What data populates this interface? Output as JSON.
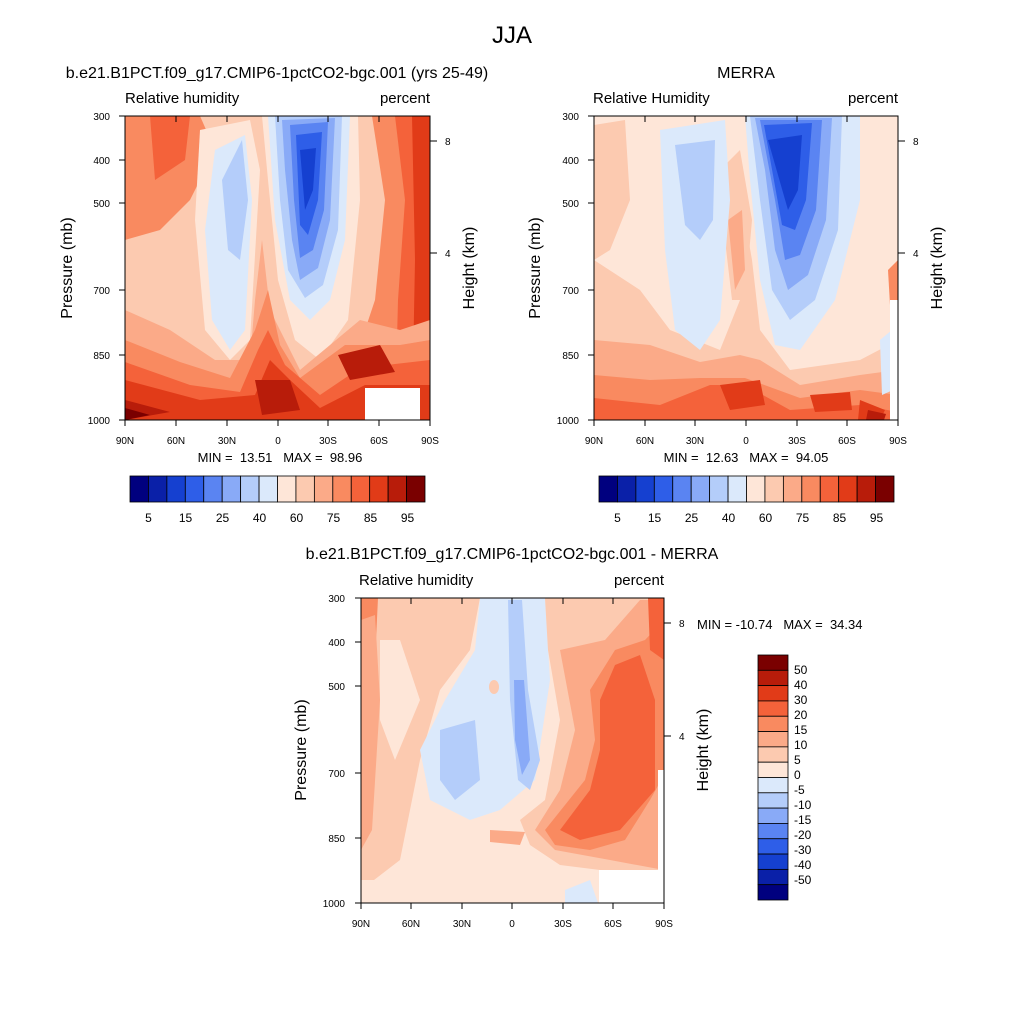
{
  "figure": {
    "title": "JJA"
  },
  "chart_data": [
    {
      "type": "heatmap",
      "title": "b.e21.B1PCT.f09_g17.CMIP6-1pctCO2-bgc.001 (yrs 25-49)",
      "left_label": "Relative humidity",
      "right_label": "percent",
      "xlabel": "",
      "ylabel": "Pressure (mb)",
      "ylabel_right": "Height (km)",
      "x_ticks": [
        "90N",
        "60N",
        "30N",
        "0",
        "30S",
        "60S",
        "90S"
      ],
      "y_ticks": [
        "300",
        "400",
        "500",
        "700",
        "850",
        "1000"
      ],
      "y_right_ticks": [
        "8",
        "4"
      ],
      "stats": "MIN =  13.51   MAX =  98.96",
      "colorbar_labels": [
        "5",
        "15",
        "25",
        "40",
        "60",
        "75",
        "85",
        "95"
      ]
    },
    {
      "type": "heatmap",
      "title": "MERRA",
      "left_label": "Relative Humidity",
      "right_label": "percent",
      "xlabel": "",
      "ylabel": "Pressure (mb)",
      "ylabel_right": "Height (km)",
      "x_ticks": [
        "90N",
        "60N",
        "30N",
        "0",
        "30S",
        "60S",
        "90S"
      ],
      "y_ticks": [
        "300",
        "400",
        "500",
        "700",
        "850",
        "1000"
      ],
      "y_right_ticks": [
        "8",
        "4"
      ],
      "stats": "MIN =  12.63   MAX =  94.05",
      "colorbar_labels": [
        "5",
        "15",
        "25",
        "40",
        "60",
        "75",
        "85",
        "95"
      ]
    },
    {
      "type": "heatmap",
      "title": "b.e21.B1PCT.f09_g17.CMIP6-1pctCO2-bgc.001 - MERRA",
      "left_label": "Relative humidity",
      "right_label": "percent",
      "xlabel": "",
      "ylabel": "Pressure (mb)",
      "ylabel_right": "Height (km)",
      "x_ticks": [
        "90N",
        "60N",
        "30N",
        "0",
        "30S",
        "60S",
        "90S"
      ],
      "y_ticks": [
        "300",
        "400",
        "500",
        "700",
        "850",
        "1000"
      ],
      "y_right_ticks": [
        "8",
        "4"
      ],
      "stats": "MIN = -10.74   MAX =  34.34",
      "colorbar_labels": [
        "50",
        "40",
        "30",
        "20",
        "15",
        "10",
        "5",
        "0",
        "-5",
        "-10",
        "-15",
        "-20",
        "-30",
        "-40",
        "-50"
      ]
    }
  ],
  "colors": {
    "abs_scale": [
      "#00007f",
      "#0a20a8",
      "#1540d0",
      "#2e5ee8",
      "#5a84f2",
      "#89aaf7",
      "#b4cdfa",
      "#dbe9fb",
      "#fee6d8",
      "#fccab0",
      "#fbaa88",
      "#f98a60",
      "#f4623a",
      "#e13b18",
      "#b81c0a",
      "#7a0000"
    ],
    "diff_scale": [
      "#7a0000",
      "#b81c0a",
      "#e13b18",
      "#f4623a",
      "#f98a60",
      "#fbaa88",
      "#fccab0",
      "#fee6d8",
      "#dbe9fb",
      "#b4cdfa",
      "#89aaf7",
      "#5a84f2",
      "#2e5ee8",
      "#1540d0",
      "#0a20a8",
      "#00007f"
    ]
  }
}
